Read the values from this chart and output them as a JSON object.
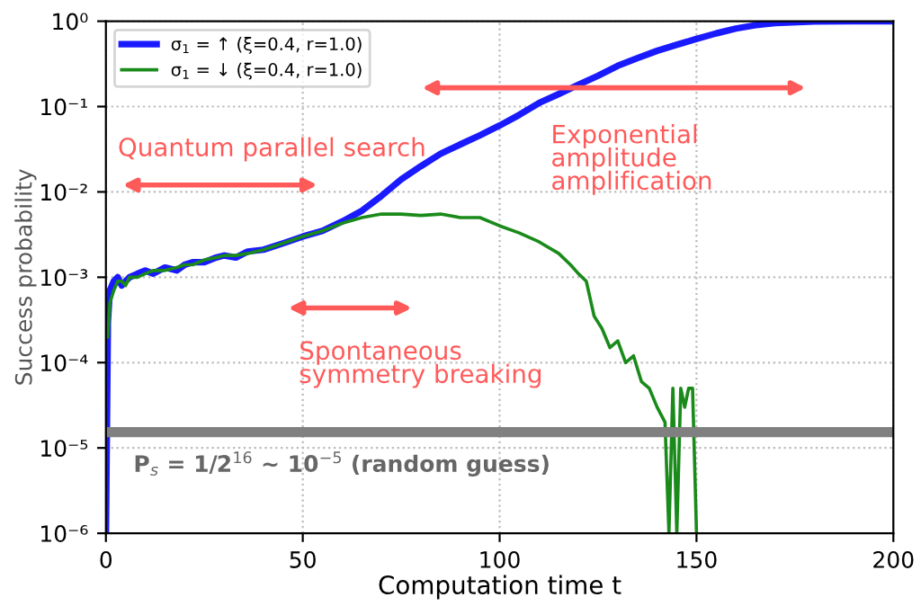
{
  "chart_data": {
    "type": "line",
    "xlabel": "Computation time t",
    "ylabel": "Success probability",
    "xlim": [
      0,
      200
    ],
    "xticks": [
      0,
      50,
      100,
      150,
      200
    ],
    "ylim": [
      1e-06,
      1
    ],
    "log": "y",
    "yticks": [
      {
        "value": 1e-06,
        "label": "10⁻⁶"
      },
      {
        "value": 1e-05,
        "label": "10⁻⁵"
      },
      {
        "value": 0.0001,
        "label": "10⁻⁴"
      },
      {
        "value": 0.001,
        "label": "10⁻³"
      },
      {
        "value": 0.01,
        "label": "10⁻²"
      },
      {
        "value": 0.1,
        "label": "10⁻¹"
      },
      {
        "value": 1,
        "label": "10⁰"
      }
    ],
    "grid": true,
    "legend": "top left",
    "line_style": "solid",
    "marker": "none",
    "series": [
      {
        "name": "σ$_{1}$ = ↑ (ξ=0.4, r=1.0)",
        "color": "#1a1aff",
        "x": [
          0,
          0.5,
          1,
          2,
          3,
          4,
          5,
          6,
          8,
          10,
          12,
          15,
          18,
          20,
          22,
          25,
          28,
          30,
          33,
          36,
          40,
          45,
          50,
          55,
          60,
          65,
          70,
          75,
          80,
          85,
          90,
          95,
          100,
          105,
          110,
          115,
          120,
          125,
          130,
          135,
          140,
          145,
          150,
          155,
          160,
          165,
          170,
          180,
          190,
          200
        ],
        "values": [
          1e-06,
          0.0003,
          0.0007,
          0.0009,
          0.001,
          0.0008,
          0.0009,
          0.001,
          0.0011,
          0.0012,
          0.0011,
          0.0013,
          0.0012,
          0.0014,
          0.0015,
          0.0015,
          0.0017,
          0.0018,
          0.0017,
          0.002,
          0.0021,
          0.0025,
          0.003,
          0.0035,
          0.0045,
          0.006,
          0.009,
          0.014,
          0.02,
          0.028,
          0.036,
          0.046,
          0.06,
          0.08,
          0.11,
          0.14,
          0.18,
          0.23,
          0.3,
          0.37,
          0.45,
          0.53,
          0.62,
          0.72,
          0.82,
          0.9,
          0.95,
          0.99,
          1,
          1
        ]
      },
      {
        "name": "σ$_{1}$ = ↓ (ξ=0.4, r=1.0)",
        "color": "#1a8a1a",
        "x": [
          0.5,
          1,
          2,
          3,
          4,
          5,
          6,
          8,
          10,
          12,
          15,
          18,
          20,
          22,
          25,
          28,
          30,
          33,
          36,
          40,
          45,
          50,
          55,
          60,
          65,
          70,
          75,
          80,
          85,
          90,
          95,
          100,
          105,
          110,
          115,
          118,
          120,
          122,
          124,
          126,
          128,
          130,
          132,
          134,
          136,
          138,
          140,
          142,
          143,
          144,
          145,
          146,
          147,
          148,
          149,
          150
        ],
        "values": [
          0.0002,
          0.0005,
          0.0007,
          0.0009,
          0.0009,
          0.0008,
          0.001,
          0.001,
          0.0011,
          0.0012,
          0.0012,
          0.0013,
          0.0014,
          0.0014,
          0.0016,
          0.0017,
          0.0018,
          0.0018,
          0.0019,
          0.0021,
          0.0025,
          0.003,
          0.0035,
          0.0043,
          0.005,
          0.0055,
          0.0055,
          0.0053,
          0.0055,
          0.005,
          0.005,
          0.004,
          0.0033,
          0.0026,
          0.0019,
          0.0014,
          0.0011,
          0.0009,
          0.00035,
          0.00025,
          0.00015,
          0.00018,
          0.0001,
          0.00012,
          6e-05,
          5e-05,
          3e-05,
          2e-05,
          1e-06,
          5e-05,
          1e-06,
          5e-05,
          3e-05,
          5e-05,
          5e-05,
          1e-06
        ]
      }
    ],
    "ref_lines": [
      {
        "axis": "y",
        "value": 1.53e-05,
        "color": "#808080"
      }
    ],
    "annotations": [
      "Quantum parallel search",
      "Exponential\namplitude\namplification",
      "Spontaneous\nsymmetry breaking",
      "P$_{s}$ = 1/2$^{16}$ ~ 10$^{−5}$ (random guess)"
    ]
  }
}
